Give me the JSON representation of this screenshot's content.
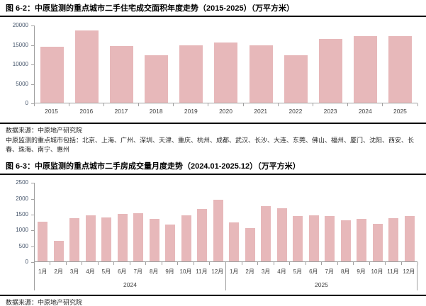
{
  "colors": {
    "bar_fill": "#e7b8ba",
    "axis_line": "#a0a0a0",
    "y_label": "#44546a",
    "x_label": "#404040",
    "rule": "#000000"
  },
  "figure1": {
    "title": "图 6-2：中原监测的重点城市二手住宅成交面积年度走势（2015-2025）（万平方米）",
    "source": "数据来源：中原地产研究院",
    "note": "中原监测的重点城市包括：北京、上海、广州、深圳、天津、重庆、杭州、成都、武汉、长沙、大连、东莞、佛山、福州、厦门、沈阳、西安、长春、珠海、南宁、惠州"
  },
  "figure2": {
    "title": "图 6-3：中原监测的重点城市二手房成交量月度走势（2024.01-2025.12）（万平方米）",
    "source": "数据来源：中原地产研究院"
  },
  "chart_data": [
    {
      "type": "bar",
      "title": "中原监测的重点城市二手住宅成交面积年度走势",
      "unit": "万平方米",
      "categories": [
        "2015",
        "2016",
        "2017",
        "2018",
        "2019",
        "2020",
        "2021",
        "2022",
        "2023",
        "2024",
        "2025"
      ],
      "values": [
        14400,
        18600,
        14500,
        12100,
        14800,
        15500,
        14700,
        12100,
        16400,
        17100,
        17100
      ],
      "ylim": [
        0,
        20000
      ],
      "ytick_step": 5000,
      "grid": false,
      "legend": false
    },
    {
      "type": "bar",
      "title": "中原监测的重点城市二手房成交量月度走势",
      "unit": "万平方米",
      "categories": [
        "1月",
        "2月",
        "3月",
        "4月",
        "5月",
        "6月",
        "7月",
        "8月",
        "9月",
        "10月",
        "11月",
        "12月"
      ],
      "series": [
        {
          "name": "2024",
          "values": [
            1240,
            640,
            1370,
            1450,
            1390,
            1500,
            1510,
            1330,
            1170,
            1440,
            1650,
            1940
          ]
        },
        {
          "name": "2025",
          "values": [
            1220,
            1040,
            1750,
            1670,
            1430,
            1450,
            1420,
            1300,
            1350,
            1190,
            1360,
            1430
          ]
        }
      ],
      "ylim": [
        0,
        2500
      ],
      "ytick_step": 500,
      "grid": false,
      "legend": false
    }
  ]
}
